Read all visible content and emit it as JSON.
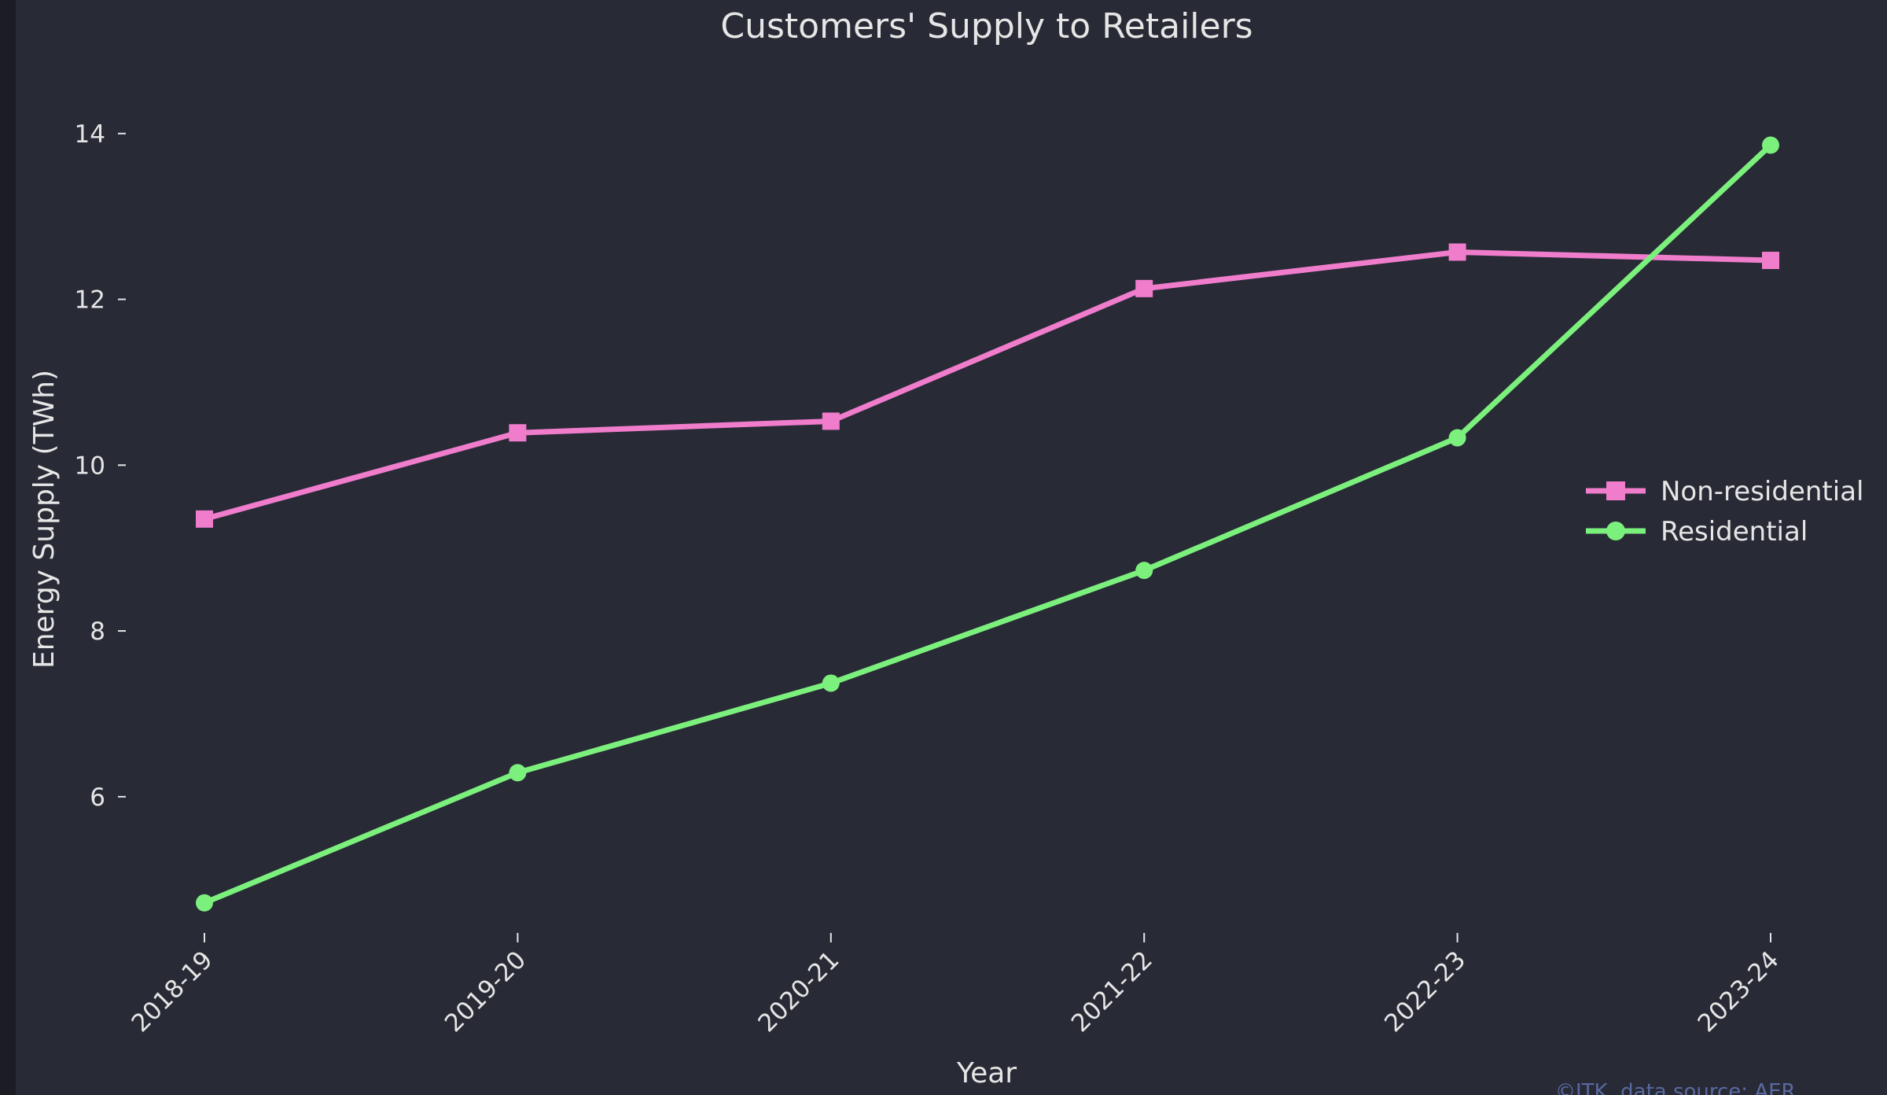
{
  "chart_data": {
    "type": "line",
    "title": "Customers' Supply to Retailers",
    "xlabel": "Year",
    "ylabel": "Energy Supply (TWh)",
    "categories": [
      "2018-19",
      "2019-20",
      "2020-21",
      "2021-22",
      "2022-23",
      "2023-24"
    ],
    "yticks": [
      6,
      8,
      10,
      12,
      14
    ],
    "ylim": [
      4.3,
      14.7
    ],
    "grid": false,
    "legend_position": "center-right",
    "series": [
      {
        "name": "Non-residential",
        "color": "#f07ccc",
        "marker": "square",
        "values": [
          9.35,
          10.39,
          10.53,
          12.13,
          12.57,
          12.47
        ]
      },
      {
        "name": "Residential",
        "color": "#7cf07c",
        "marker": "circle",
        "values": [
          4.72,
          6.29,
          7.37,
          8.73,
          10.33,
          13.86
        ]
      }
    ]
  },
  "colors": {
    "page_background": "#1c1c24",
    "plot_background": "#282a36",
    "text": "#e6e6e6",
    "watermark": "#5a6aa0"
  },
  "watermark": "©ITK, data source: AER"
}
